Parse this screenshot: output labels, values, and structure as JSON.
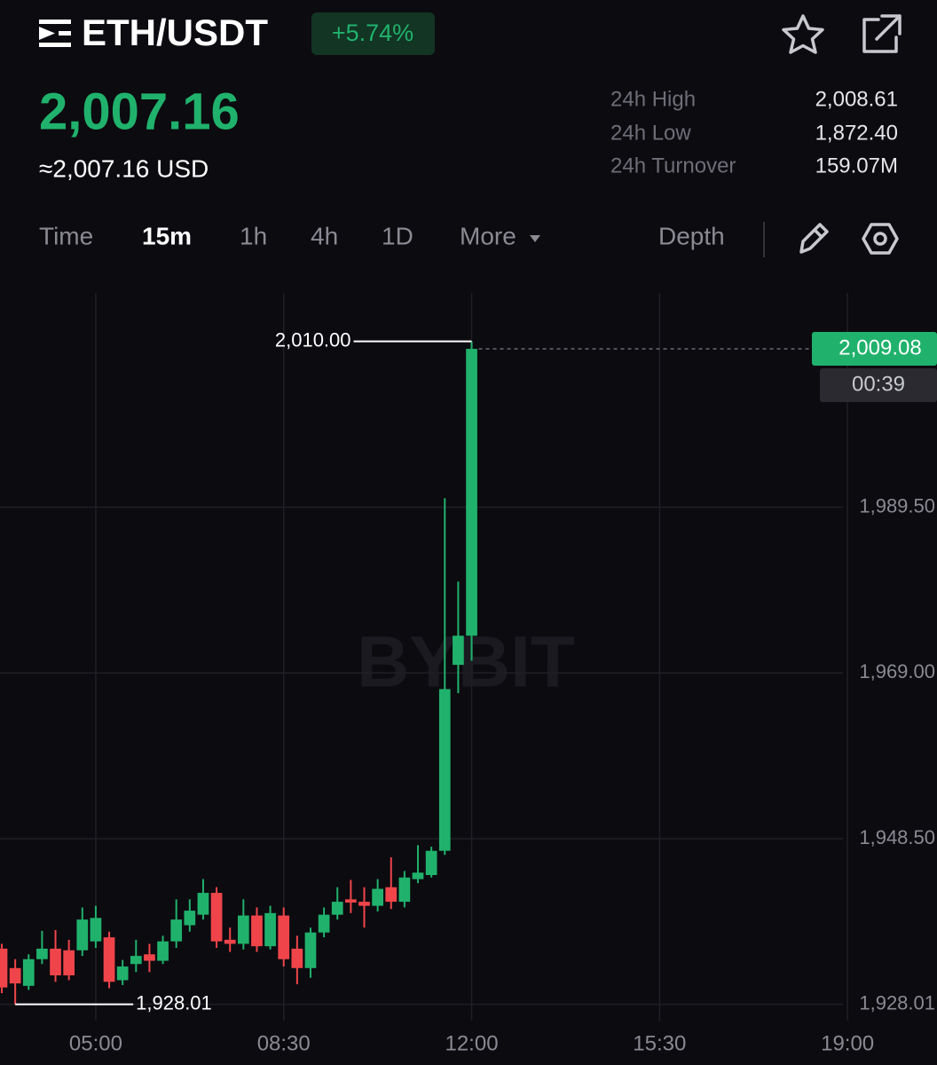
{
  "header": {
    "symbol": "ETH/USDT",
    "change": "+5.74%",
    "price": "2,007.16",
    "price_usd": "≈2,007.16 USD",
    "stats": [
      {
        "label": "24h High",
        "value": "2,008.61"
      },
      {
        "label": "24h Low",
        "value": "1,872.40"
      },
      {
        "label": "24h Turnover",
        "value": "159.07M"
      }
    ]
  },
  "tabs": {
    "items": [
      "Time",
      "15m",
      "1h",
      "4h",
      "1D",
      "More"
    ],
    "depth": "Depth"
  },
  "chart_data": {
    "type": "candlestick",
    "watermark": "BYBIT",
    "x": [
      "03:15",
      "03:30",
      "03:45",
      "04:00",
      "04:15",
      "04:30",
      "04:45",
      "05:00",
      "05:15",
      "05:30",
      "05:45",
      "06:00",
      "06:15",
      "06:30",
      "06:45",
      "07:00",
      "07:15",
      "07:30",
      "07:45",
      "08:00",
      "08:15",
      "08:30",
      "08:45",
      "09:00",
      "09:15",
      "09:30",
      "09:45",
      "10:00",
      "10:15",
      "10:30",
      "10:45",
      "11:00",
      "11:15",
      "11:30",
      "11:45",
      "12:00"
    ],
    "open": [
      1934.9,
      1932.5,
      1930.3,
      1933.6,
      1934.9,
      1934.7,
      1934.7,
      1935.8,
      1936.3,
      1931.0,
      1933.0,
      1934.2,
      1933.4,
      1935.8,
      1937.8,
      1939.1,
      1941.8,
      1936.0,
      1935.5,
      1939.0,
      1935.2,
      1939.0,
      1934.9,
      1932.5,
      1936.9,
      1939.1,
      1941.0,
      1940.7,
      1940.2,
      1942.5,
      1940.7,
      1943.5,
      1944.0,
      1947.0,
      1970.0,
      1973.6
    ],
    "high": [
      1935.5,
      1933.6,
      1934.2,
      1937.1,
      1937.2,
      1936.0,
      1940.0,
      1940.2,
      1937.0,
      1933.5,
      1936.0,
      1935.5,
      1936.5,
      1941.0,
      1941.0,
      1943.5,
      1942.5,
      1937.5,
      1941.0,
      1940.0,
      1940.2,
      1940.0,
      1936.5,
      1937.5,
      1940.0,
      1942.5,
      1943.4,
      1942.5,
      1943.5,
      1946.2,
      1944.5,
      1947.7,
      1947.5,
      1990.6,
      1980.3,
      2010.0
    ],
    "low": [
      1929.4,
      1928.01,
      1929.8,
      1933.0,
      1930.8,
      1931.0,
      1934.0,
      1935.0,
      1930.0,
      1930.4,
      1932.0,
      1932.0,
      1933.0,
      1935.0,
      1937.0,
      1938.5,
      1935.0,
      1934.5,
      1934.8,
      1934.5,
      1934.8,
      1932.7,
      1930.5,
      1931.3,
      1936.3,
      1938.5,
      1939.3,
      1937.5,
      1939.5,
      1939.8,
      1940.0,
      1943.0,
      1943.7,
      1946.5,
      1966.5,
      1970.5
    ],
    "close": [
      1930.1,
      1930.6,
      1933.6,
      1934.9,
      1931.6,
      1931.6,
      1938.5,
      1938.7,
      1930.8,
      1932.7,
      1934.0,
      1933.4,
      1935.8,
      1938.5,
      1939.6,
      1941.8,
      1935.8,
      1935.5,
      1939.0,
      1935.2,
      1939.3,
      1933.6,
      1932.5,
      1936.9,
      1939.1,
      1940.7,
      1940.6,
      1940.2,
      1942.3,
      1940.7,
      1943.7,
      1944.3,
      1947.0,
      1967.0,
      1973.6,
      2009.08
    ],
    "up_color": "#20b26c",
    "down_color": "#ef454a",
    "xlim": [
      "03:13",
      "20:40"
    ],
    "xticks": [
      "05:00",
      "08:30",
      "12:00",
      "15:30",
      "19:00"
    ],
    "ylim": [
      1926,
      2016
    ],
    "yticks": [
      {
        "value": 1928.01,
        "label": "1,928.01"
      },
      {
        "value": 1948.5,
        "label": "1,948.50"
      },
      {
        "value": 1969,
        "label": "1,969.00"
      },
      {
        "value": 1989.5,
        "label": "1,989.50"
      }
    ],
    "grid": true,
    "annotations": {
      "high": {
        "value": 2010,
        "label": "2,010.00",
        "x": "12:00"
      },
      "low": {
        "value": 1928.01,
        "label": "1,928.01",
        "x": "03:30"
      }
    },
    "last_price": {
      "value": 2009.08,
      "label": "2,009.08",
      "countdown": "00:39"
    }
  }
}
